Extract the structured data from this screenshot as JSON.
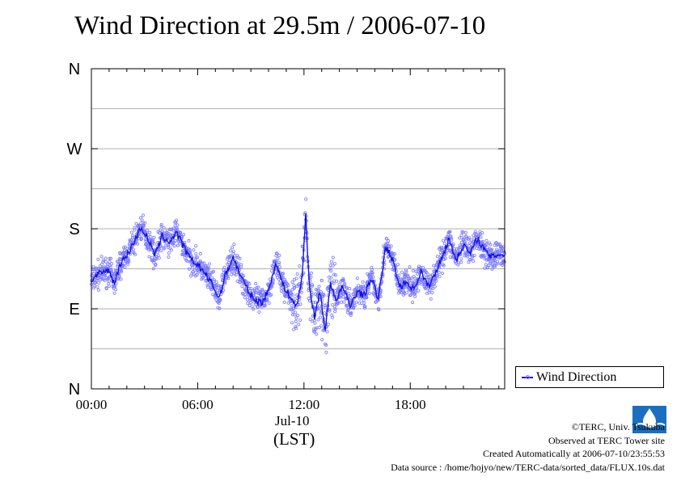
{
  "chart_data": {
    "type": "scatter",
    "title": "Wind Direction at 29.5m / 2006-07-10",
    "xlabel_date": "Jul-10",
    "xlabel_unit": "(LST)",
    "x_ticks": [
      "00:00",
      "06:00",
      "12:00",
      "18:00"
    ],
    "x_tick_hours": [
      0,
      6,
      12,
      18
    ],
    "xlim_hours": [
      0,
      23.33
    ],
    "y_ticks": [
      "N",
      "E",
      "S",
      "W",
      "N"
    ],
    "y_tick_degrees": [
      0,
      90,
      180,
      270,
      360
    ],
    "ylim_degrees": [
      0,
      360
    ],
    "grid": true,
    "legend": "bottom-right outside plot",
    "series": [
      {
        "name": "Wind Direction",
        "style": "points with running-mean line",
        "mean_line": [
          {
            "h": 0.0,
            "d": 122
          },
          {
            "h": 0.5,
            "d": 130
          },
          {
            "h": 1.0,
            "d": 133
          },
          {
            "h": 1.3,
            "d": 118
          },
          {
            "h": 1.6,
            "d": 140
          },
          {
            "h": 2.0,
            "d": 150
          },
          {
            "h": 2.4,
            "d": 165
          },
          {
            "h": 2.8,
            "d": 182
          },
          {
            "h": 3.2,
            "d": 168
          },
          {
            "h": 3.6,
            "d": 150
          },
          {
            "h": 4.0,
            "d": 172
          },
          {
            "h": 4.4,
            "d": 165
          },
          {
            "h": 4.8,
            "d": 176
          },
          {
            "h": 5.2,
            "d": 160
          },
          {
            "h": 5.6,
            "d": 145
          },
          {
            "h": 6.0,
            "d": 140
          },
          {
            "h": 6.4,
            "d": 130
          },
          {
            "h": 6.8,
            "d": 118
          },
          {
            "h": 7.2,
            "d": 102
          },
          {
            "h": 7.6,
            "d": 130
          },
          {
            "h": 8.0,
            "d": 148
          },
          {
            "h": 8.4,
            "d": 128
          },
          {
            "h": 8.8,
            "d": 112
          },
          {
            "h": 9.2,
            "d": 100
          },
          {
            "h": 9.6,
            "d": 97
          },
          {
            "h": 10.0,
            "d": 110
          },
          {
            "h": 10.4,
            "d": 142
          },
          {
            "h": 10.8,
            "d": 118
          },
          {
            "h": 11.2,
            "d": 104
          },
          {
            "h": 11.6,
            "d": 92
          },
          {
            "h": 11.9,
            "d": 128
          },
          {
            "h": 12.1,
            "d": 195
          },
          {
            "h": 12.3,
            "d": 118
          },
          {
            "h": 12.6,
            "d": 80
          },
          {
            "h": 12.9,
            "d": 110
          },
          {
            "h": 13.2,
            "d": 65
          },
          {
            "h": 13.5,
            "d": 120
          },
          {
            "h": 13.8,
            "d": 100
          },
          {
            "h": 14.2,
            "d": 115
          },
          {
            "h": 14.6,
            "d": 92
          },
          {
            "h": 15.0,
            "d": 110
          },
          {
            "h": 15.4,
            "d": 105
          },
          {
            "h": 15.8,
            "d": 125
          },
          {
            "h": 16.2,
            "d": 100
          },
          {
            "h": 16.6,
            "d": 160
          },
          {
            "h": 17.0,
            "d": 145
          },
          {
            "h": 17.4,
            "d": 115
          },
          {
            "h": 17.8,
            "d": 120
          },
          {
            "h": 18.2,
            "d": 112
          },
          {
            "h": 18.6,
            "d": 132
          },
          {
            "h": 19.0,
            "d": 115
          },
          {
            "h": 19.4,
            "d": 128
          },
          {
            "h": 19.8,
            "d": 150
          },
          {
            "h": 20.2,
            "d": 168
          },
          {
            "h": 20.6,
            "d": 145
          },
          {
            "h": 21.0,
            "d": 162
          },
          {
            "h": 21.4,
            "d": 152
          },
          {
            "h": 21.8,
            "d": 170
          },
          {
            "h": 22.2,
            "d": 155
          },
          {
            "h": 22.6,
            "d": 148
          },
          {
            "h": 23.0,
            "d": 152
          },
          {
            "h": 23.33,
            "d": 150
          }
        ]
      }
    ]
  },
  "legend": {
    "label": "Wind Direction"
  },
  "credits": {
    "copyright": "©TERC, Univ. Tsukuba",
    "observed": "Observed at TERC Tower site",
    "created": "Created Automatically at 2006-07-10/23:55:53",
    "source": "Data source : /home/hojyo/new/TERC-data/sorted_data/FLUX.10s.dat"
  },
  "logo_text": "TERC",
  "colors": {
    "points": "#7a7aff",
    "line": "#1010e0",
    "grid": "#b0b0b0",
    "axis": "#000000"
  }
}
